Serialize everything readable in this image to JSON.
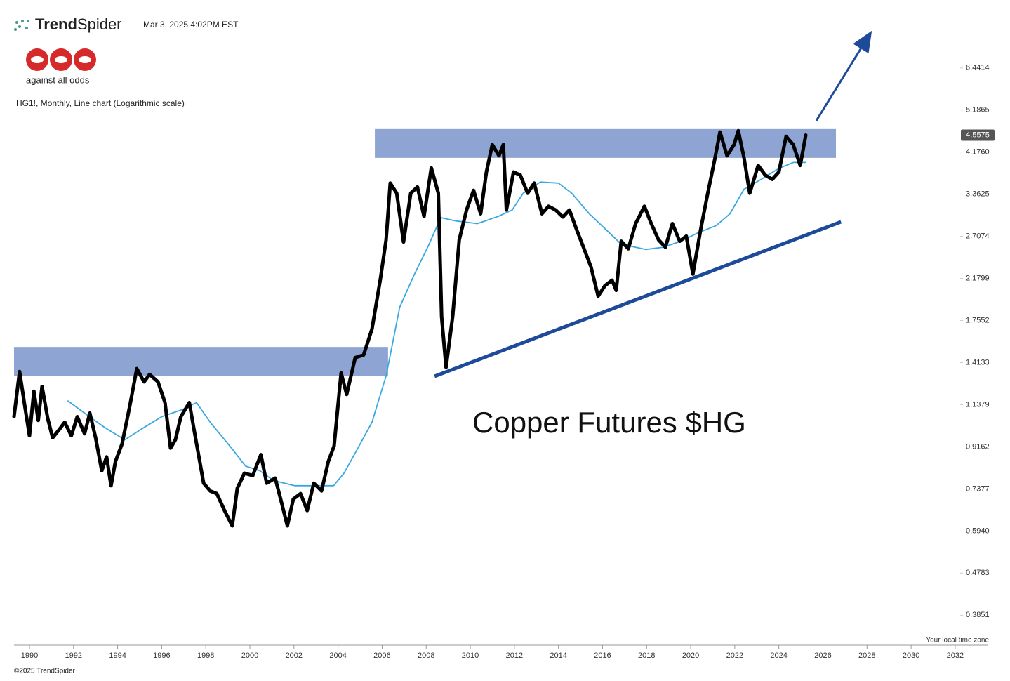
{
  "header": {
    "brand": {
      "bold": "Trend",
      "regular": "Spider"
    },
    "timestamp": "Mar 3, 2025 4:02PM EST",
    "logo_caption": "against all odds",
    "chart_label": "HG1!, Monthly, Line chart (Logarithmic scale)"
  },
  "chart_data": {
    "type": "line",
    "title": "Copper Futures $HG",
    "log_scale": true,
    "grid": false,
    "xlim": [
      1989.3,
      2033.5
    ],
    "ylim": [
      0.33,
      8.5
    ],
    "xticks": [
      1990,
      1992,
      1994,
      1996,
      1998,
      2000,
      2002,
      2004,
      2006,
      2008,
      2010,
      2012,
      2014,
      2016,
      2018,
      2020,
      2022,
      2024,
      2026,
      2028,
      2030,
      2032
    ],
    "yticks": [
      6.4414,
      5.1865,
      {
        "value": 4.176,
        "label": "4.1760"
      },
      3.3625,
      2.7074,
      2.1799,
      1.7552,
      1.4133,
      1.1379,
      0.9162,
      0.7377,
      {
        "value": 0.594,
        "label": "0.5940"
      },
      0.4783,
      0.3851
    ],
    "series": [
      {
        "color": "#000000",
        "x": [
          1989.3,
          1989.55,
          1989.8,
          1990,
          1990.2,
          1990.4,
          1990.57,
          1990.83,
          1991.05,
          1991.34,
          1991.6,
          1991.9,
          1992.17,
          1992.5,
          1992.74,
          1993,
          1993.28,
          1993.5,
          1993.7,
          1993.9,
          1994.2,
          1994.55,
          1994.87,
          1995.2,
          1995.45,
          1995.83,
          1996.15,
          1996.4,
          1996.62,
          1996.87,
          1997.25,
          1997.5,
          1997.9,
          1998.2,
          1998.5,
          1998.85,
          1999.2,
          1999.43,
          1999.75,
          2000.13,
          2000.5,
          2000.76,
          2001.15,
          2001.46,
          2001.7,
          2001.97,
          2002.3,
          2002.6,
          2002.9,
          2003.25,
          2003.56,
          2003.82,
          2004.14,
          2004.39,
          2004.78,
          2005.16,
          2005.54,
          2005.92,
          2006.18,
          2006.37,
          2006.66,
          2006.97,
          2007.3,
          2007.6,
          2007.9,
          2008.23,
          2008.55,
          2008.7,
          2008.9,
          2009.2,
          2009.5,
          2009.83,
          2010.15,
          2010.47,
          2010.73,
          2011,
          2011.3,
          2011.5,
          2011.64,
          2011.96,
          2012.27,
          2012.6,
          2012.9,
          2013.25,
          2013.55,
          2013.87,
          2014.2,
          2014.5,
          2014.84,
          2015.16,
          2015.48,
          2015.8,
          2016.11,
          2016.43,
          2016.62,
          2016.85,
          2017.17,
          2017.5,
          2017.9,
          2018.2,
          2018.54,
          2018.85,
          2019.17,
          2019.5,
          2019.8,
          2020.1,
          2020.45,
          2020.76,
          2021.08,
          2021.33,
          2021.65,
          2021.97,
          2022.16,
          2022.42,
          2022.68,
          2023.06,
          2023.38,
          2023.7,
          2024,
          2024.33,
          2024.65,
          2024.97,
          2025.22
        ],
        "values": [
          1.07,
          1.35,
          1.12,
          0.97,
          1.22,
          1.05,
          1.25,
          1.06,
          0.96,
          1.0,
          1.04,
          0.97,
          1.07,
          0.98,
          1.09,
          0.96,
          0.81,
          0.87,
          0.75,
          0.85,
          0.93,
          1.13,
          1.37,
          1.28,
          1.33,
          1.28,
          1.15,
          0.91,
          0.95,
          1.07,
          1.15,
          0.98,
          0.76,
          0.73,
          0.72,
          0.66,
          0.61,
          0.74,
          0.8,
          0.79,
          0.88,
          0.76,
          0.78,
          0.68,
          0.61,
          0.7,
          0.72,
          0.66,
          0.76,
          0.73,
          0.85,
          0.92,
          1.34,
          1.2,
          1.45,
          1.47,
          1.68,
          2.17,
          2.66,
          3.56,
          3.38,
          2.63,
          3.38,
          3.49,
          3.0,
          3.85,
          3.38,
          1.79,
          1.38,
          1.79,
          2.66,
          3.1,
          3.43,
          3.04,
          3.77,
          4.34,
          4.1,
          4.34,
          3.1,
          3.77,
          3.71,
          3.38,
          3.56,
          3.04,
          3.16,
          3.1,
          2.99,
          3.1,
          2.79,
          2.54,
          2.31,
          1.99,
          2.1,
          2.16,
          2.05,
          2.64,
          2.54,
          2.89,
          3.16,
          2.9,
          2.66,
          2.56,
          2.89,
          2.64,
          2.71,
          2.23,
          2.8,
          3.35,
          4.0,
          4.63,
          4.1,
          4.34,
          4.66,
          4.05,
          3.38,
          3.9,
          3.71,
          3.63,
          3.77,
          4.53,
          4.34,
          3.9,
          4.5575
        ]
      },
      {
        "color": "#3aa8e0",
        "x": [
          1991.75,
          1992.5,
          1993.44,
          1994.33,
          1995.03,
          1996,
          1996.94,
          1997.58,
          1998.2,
          1999.17,
          1999.8,
          2000.45,
          2001.08,
          2002.03,
          2003,
          2003.8,
          2004.27,
          2004.9,
          2005.54,
          2006.18,
          2006.8,
          2007.45,
          2008.1,
          2008.66,
          2009.36,
          2010.32,
          2011.27,
          2011.9,
          2012.4,
          2013.18,
          2014,
          2014.6,
          2015.4,
          2016.2,
          2016.85,
          2017.96,
          2018.76,
          2019.55,
          2020.35,
          2021.15,
          2021.78,
          2022.42,
          2023.2,
          2024,
          2024.65,
          2025.22
        ],
        "values": [
          1.16,
          1.09,
          1.01,
          0.95,
          1.0,
          1.07,
          1.11,
          1.15,
          1.04,
          0.91,
          0.83,
          0.81,
          0.77,
          0.75,
          0.75,
          0.75,
          0.8,
          0.91,
          1.04,
          1.32,
          1.88,
          2.22,
          2.58,
          2.98,
          2.93,
          2.89,
          3.0,
          3.1,
          3.38,
          3.58,
          3.56,
          3.38,
          3.04,
          2.79,
          2.6,
          2.53,
          2.56,
          2.64,
          2.76,
          2.86,
          3.04,
          3.45,
          3.63,
          3.84,
          3.96,
          3.96
        ]
      }
    ],
    "last_value": 4.5575,
    "zones": [
      {
        "color": "#8ea5d4",
        "xlim": [
          1989.3,
          2006.27
        ],
        "ylim": [
          1.317,
          1.532
        ]
      },
      {
        "color": "#8ea5d4",
        "xlim": [
          2005.67,
          2026.59
        ],
        "ylim": [
          4.054,
          4.702
        ]
      }
    ],
    "trendline": {
      "color": "#1e4a9a",
      "x": [
        2008.38,
        2026.82
      ],
      "y": [
        1.317,
        2.917
      ]
    },
    "arrow": {
      "color": "#1e4a9a",
      "x": [
        2025.7,
        2028.22
      ],
      "y": [
        4.911,
        7.802
      ]
    },
    "timezone_note": "Your local time zone"
  },
  "footer": {
    "copyright": "©2025 TrendSpider"
  }
}
